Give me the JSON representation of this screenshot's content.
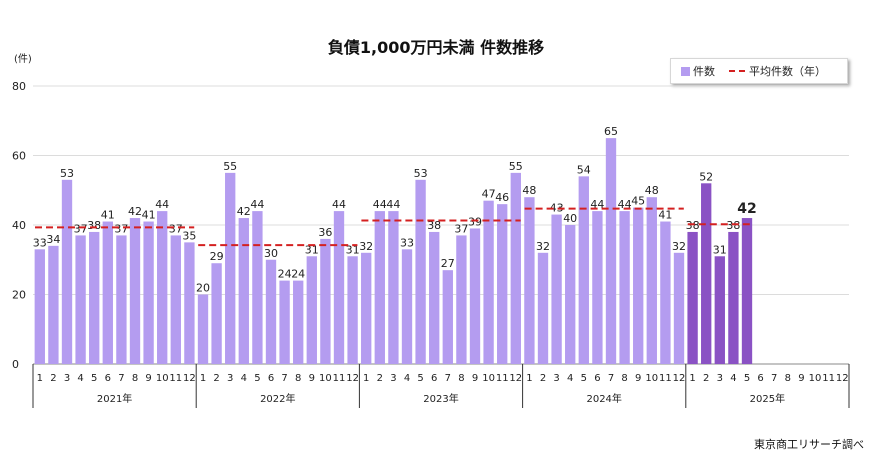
{
  "chart_data": {
    "type": "bar",
    "title": "負債1,000万円未満 件数推移",
    "unit_label": "(件)",
    "source": "東京商工リサーチ調べ",
    "ylim": [
      0,
      80
    ],
    "yticks": [
      0,
      20,
      40,
      60,
      80
    ],
    "grid": true,
    "legend_position": "top-right",
    "legend": {
      "bar_label": "件数",
      "line_label": "平均件数（年）"
    },
    "colors": {
      "bar": "#b49cf0",
      "bar_highlight": "#8a52c4",
      "avg_line": "#d42020"
    },
    "years": [
      {
        "label": "2021年",
        "months": [
          "1",
          "2",
          "3",
          "4",
          "5",
          "6",
          "7",
          "8",
          "9",
          "10",
          "11",
          "12"
        ],
        "values": [
          33,
          34,
          53,
          37,
          38,
          41,
          37,
          42,
          41,
          44,
          37,
          35
        ],
        "average": 39.3
      },
      {
        "label": "2022年",
        "months": [
          "1",
          "2",
          "3",
          "4",
          "5",
          "6",
          "7",
          "8",
          "9",
          "10",
          "11",
          "12"
        ],
        "values": [
          20,
          29,
          55,
          42,
          44,
          30,
          24,
          24,
          31,
          36,
          44,
          31
        ],
        "average": 34.2
      },
      {
        "label": "2023年",
        "months": [
          "1",
          "2",
          "3",
          "4",
          "5",
          "6",
          "7",
          "8",
          "9",
          "10",
          "11",
          "12"
        ],
        "values": [
          32,
          44,
          44,
          33,
          53,
          38,
          27,
          37,
          39,
          47,
          46,
          55
        ],
        "average": 41.3
      },
      {
        "label": "2024年",
        "months": [
          "1",
          "2",
          "3",
          "4",
          "5",
          "6",
          "7",
          "8",
          "9",
          "10",
          "11",
          "12"
        ],
        "values": [
          48,
          32,
          43,
          40,
          54,
          44,
          65,
          44,
          45,
          48,
          41,
          32
        ],
        "average": 44.7
      },
      {
        "label": "2025年",
        "months": [
          "1",
          "2",
          "3",
          "4",
          "5",
          "6",
          "7",
          "8",
          "9",
          "10",
          "11",
          "12"
        ],
        "values": [
          38,
          52,
          31,
          38,
          42,
          null,
          null,
          null,
          null,
          null,
          null,
          null
        ],
        "average": 40.2
      }
    ],
    "highlight_last_label": "42"
  }
}
